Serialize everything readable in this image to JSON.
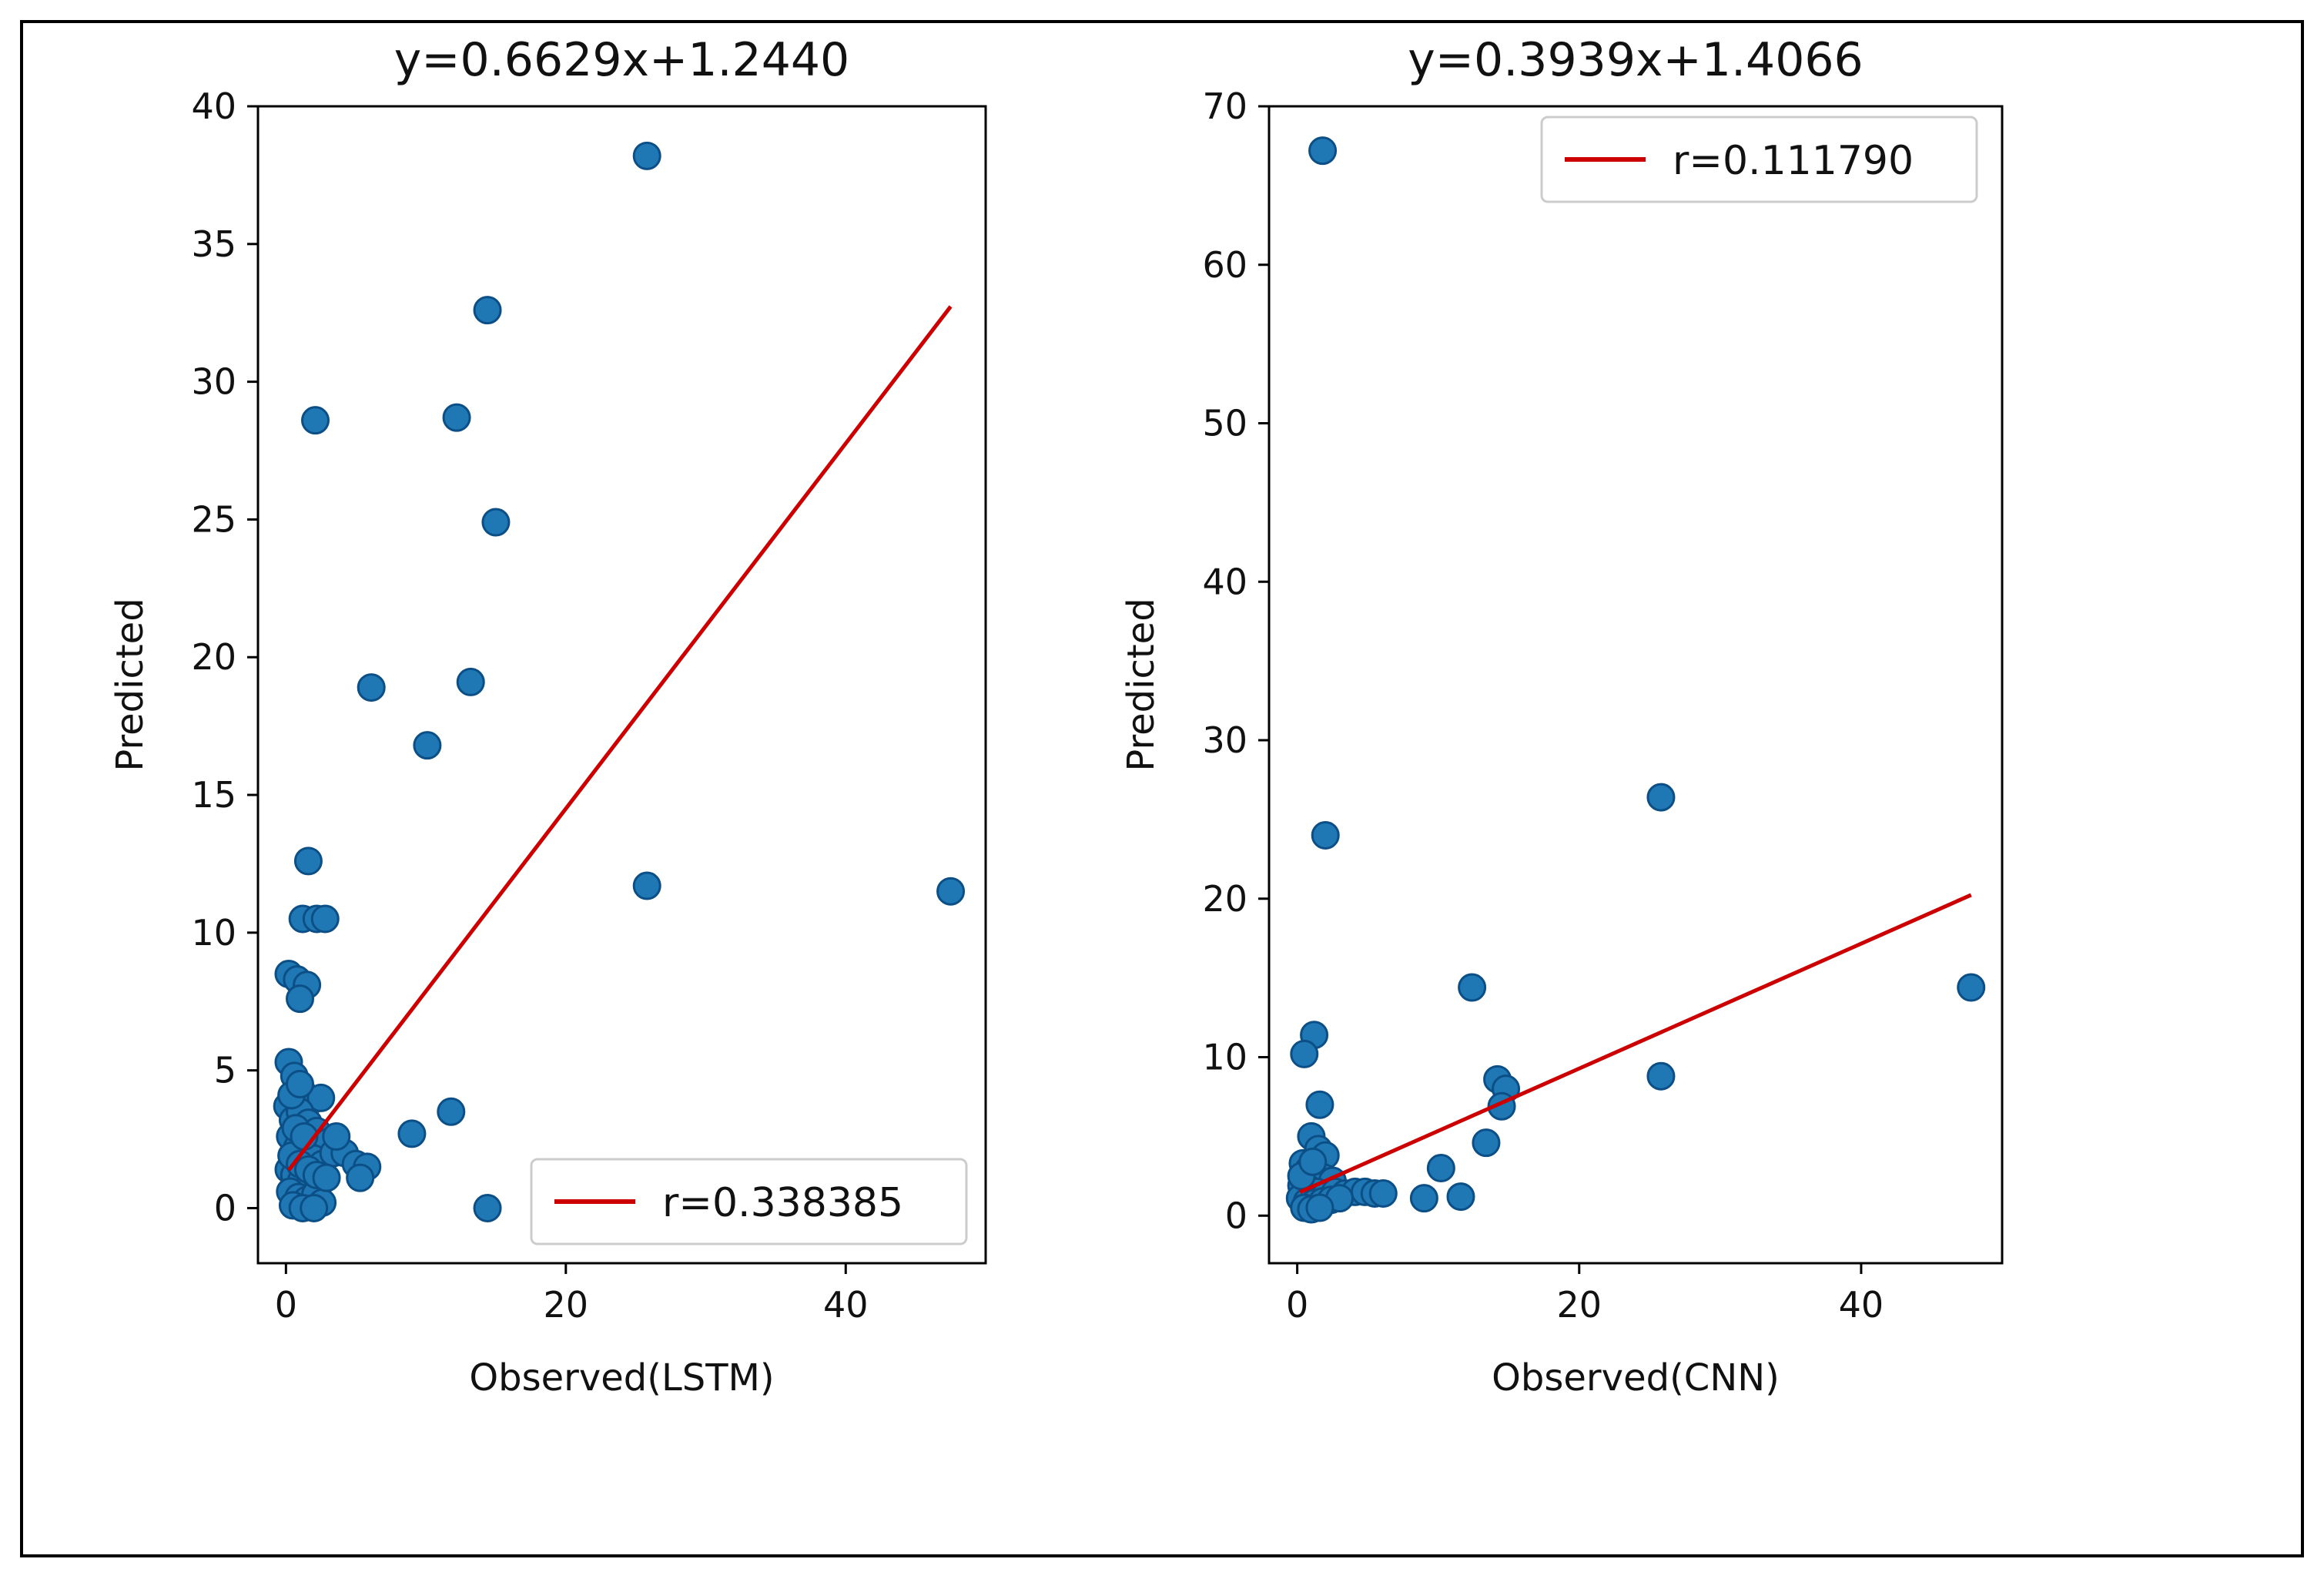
{
  "colors": {
    "points": "#1f77b4",
    "point_edge": "#0b4f86",
    "fit_line": "#cc0000",
    "frame": "#000000",
    "legend_edge": "#cccccc"
  },
  "chart_data": [
    {
      "type": "scatter",
      "title": "y=0.6629x+1.2440",
      "xlabel": "Observed(LSTM)",
      "ylabel": "Predicted",
      "xlim": [
        -2,
        50
      ],
      "ylim": [
        -2,
        40
      ],
      "xticks": [
        0,
        20,
        40
      ],
      "yticks": [
        0,
        5,
        10,
        15,
        20,
        25,
        30,
        35,
        40
      ],
      "legend_position": "lower-right",
      "fit": {
        "slope": 0.6629,
        "intercept": 1.244,
        "x_range": [
          0.2,
          47.5
        ],
        "label": "r=0.338385"
      },
      "points": [
        [
          25.8,
          38.2
        ],
        [
          14.4,
          32.6
        ],
        [
          12.2,
          28.7
        ],
        [
          2.1,
          28.6
        ],
        [
          15.0,
          24.9
        ],
        [
          13.2,
          19.1
        ],
        [
          6.1,
          18.9
        ],
        [
          10.1,
          16.8
        ],
        [
          1.6,
          12.6
        ],
        [
          25.8,
          11.7
        ],
        [
          47.5,
          11.5
        ],
        [
          1.2,
          10.5
        ],
        [
          2.2,
          10.5
        ],
        [
          2.8,
          10.5
        ],
        [
          0.2,
          8.5
        ],
        [
          0.8,
          8.3
        ],
        [
          1.5,
          8.1
        ],
        [
          1.0,
          7.6
        ],
        [
          11.8,
          3.5
        ],
        [
          9.0,
          2.7
        ],
        [
          14.4,
          0.0
        ],
        [
          0.2,
          5.3
        ],
        [
          0.6,
          4.8
        ],
        [
          1.2,
          4.2
        ],
        [
          1.8,
          3.9
        ],
        [
          2.5,
          4.0
        ],
        [
          0.1,
          3.7
        ],
        [
          0.5,
          3.2
        ],
        [
          1.0,
          3.5
        ],
        [
          1.6,
          3.1
        ],
        [
          2.2,
          2.8
        ],
        [
          3.0,
          2.4
        ],
        [
          0.3,
          2.6
        ],
        [
          0.8,
          2.2
        ],
        [
          1.4,
          2.0
        ],
        [
          2.0,
          1.8
        ],
        [
          2.6,
          1.6
        ],
        [
          3.4,
          2.0
        ],
        [
          4.2,
          2.0
        ],
        [
          5.0,
          1.6
        ],
        [
          5.8,
          1.5
        ],
        [
          5.3,
          1.1
        ],
        [
          0.2,
          1.4
        ],
        [
          0.6,
          1.2
        ],
        [
          1.1,
          1.0
        ],
        [
          1.7,
          0.9
        ],
        [
          2.3,
          0.8
        ],
        [
          0.3,
          0.6
        ],
        [
          0.9,
          0.4
        ],
        [
          1.5,
          0.3
        ],
        [
          2.1,
          0.5
        ],
        [
          2.6,
          0.2
        ],
        [
          0.5,
          0.1
        ],
        [
          1.2,
          0.0
        ],
        [
          2.0,
          0.0
        ],
        [
          0.4,
          1.9
        ],
        [
          1.0,
          1.6
        ],
        [
          1.6,
          1.4
        ],
        [
          2.2,
          1.2
        ],
        [
          2.9,
          1.1
        ],
        [
          0.7,
          2.9
        ],
        [
          1.3,
          2.6
        ],
        [
          0.4,
          4.1
        ],
        [
          1.0,
          4.5
        ],
        [
          3.6,
          2.6
        ]
      ]
    },
    {
      "type": "scatter",
      "title": "y=0.3939x+1.4066",
      "xlabel": "Observed(CNN)",
      "ylabel": "Predicted",
      "xlim": [
        -2,
        50
      ],
      "ylim": [
        -3,
        70
      ],
      "xticks": [
        0,
        20,
        40
      ],
      "yticks": [
        0,
        10,
        20,
        30,
        40,
        50,
        60,
        70
      ],
      "legend_position": "upper-right",
      "fit": {
        "slope": 0.3939,
        "intercept": 1.4066,
        "x_range": [
          0.2,
          47.8
        ],
        "label": "r=0.111790"
      },
      "points": [
        [
          1.8,
          67.2
        ],
        [
          25.8,
          26.4
        ],
        [
          2.0,
          24.0
        ],
        [
          12.4,
          14.4
        ],
        [
          47.8,
          14.4
        ],
        [
          1.2,
          11.4
        ],
        [
          0.5,
          10.2
        ],
        [
          25.8,
          8.8
        ],
        [
          14.2,
          8.6
        ],
        [
          14.8,
          8.0
        ],
        [
          14.5,
          6.9
        ],
        [
          1.6,
          7.0
        ],
        [
          13.4,
          4.6
        ],
        [
          10.2,
          3.0
        ],
        [
          9.0,
          1.1
        ],
        [
          11.6,
          1.2
        ],
        [
          1.0,
          5.0
        ],
        [
          1.5,
          4.2
        ],
        [
          2.0,
          3.8
        ],
        [
          0.4,
          3.3
        ],
        [
          0.8,
          2.9
        ],
        [
          1.3,
          2.6
        ],
        [
          1.9,
          2.4
        ],
        [
          2.5,
          2.2
        ],
        [
          0.3,
          1.9
        ],
        [
          0.8,
          1.7
        ],
        [
          1.4,
          1.5
        ],
        [
          2.0,
          1.3
        ],
        [
          2.7,
          1.5
        ],
        [
          3.4,
          1.4
        ],
        [
          4.1,
          1.5
        ],
        [
          4.8,
          1.5
        ],
        [
          5.5,
          1.4
        ],
        [
          6.1,
          1.4
        ],
        [
          0.2,
          1.1
        ],
        [
          0.7,
          0.9
        ],
        [
          1.2,
          0.8
        ],
        [
          1.8,
          0.9
        ],
        [
          2.4,
          1.0
        ],
        [
          3.0,
          1.1
        ],
        [
          0.5,
          0.5
        ],
        [
          1.0,
          0.4
        ],
        [
          1.6,
          0.5
        ],
        [
          0.3,
          2.5
        ],
        [
          1.1,
          3.4
        ]
      ]
    }
  ]
}
